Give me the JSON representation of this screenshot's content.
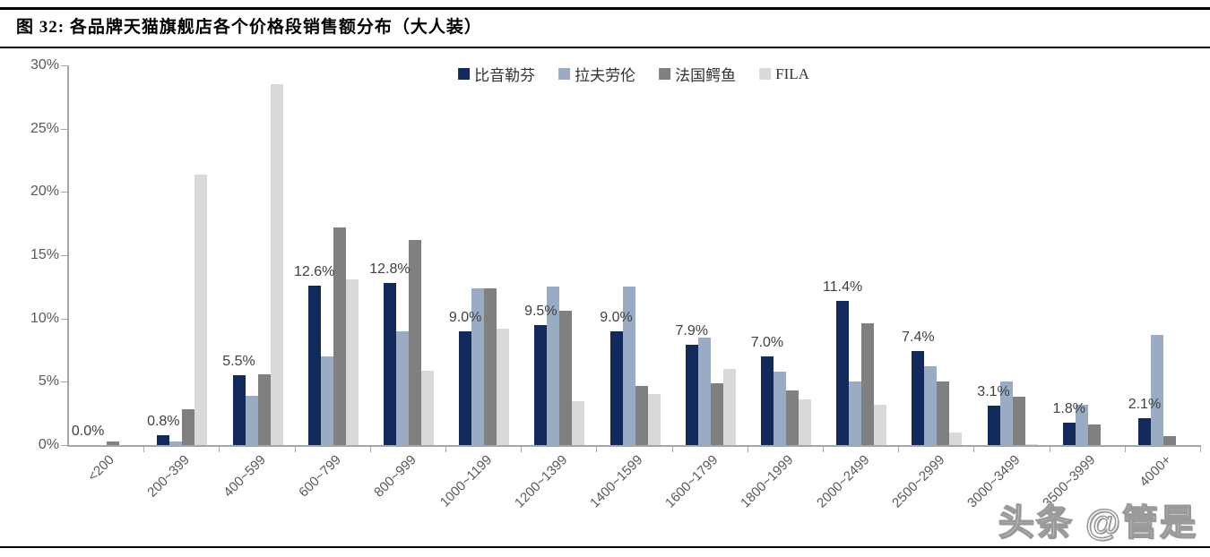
{
  "figure": {
    "title": "图 32:  各品牌天猫旗舰店各个价格段销售额分布（大人装）"
  },
  "watermark": "头条 @管是",
  "colors": {
    "axis_line": "#a6a6a6",
    "axis_text": "#595959",
    "data_label_text": "#404040"
  },
  "chart_data": {
    "type": "bar",
    "title": "各品牌天猫旗舰店各个价格段销售额分布（大人装）",
    "xlabel": "",
    "ylabel": "",
    "ylim": [
      0,
      30
    ],
    "ytick_step": 5,
    "yticks": [
      "0%",
      "5%",
      "10%",
      "15%",
      "20%",
      "25%",
      "30%"
    ],
    "grid": false,
    "legend_position": "top-center",
    "categories": [
      "<200",
      "200~399",
      "400~599",
      "600~799",
      "800~999",
      "1000~1199",
      "1200~1399",
      "1400~1599",
      "1600~1799",
      "1800~1999",
      "2000~2499",
      "2500~2999",
      "3000~3499",
      "3500~3999",
      "4000+"
    ],
    "series": [
      {
        "name": "比音勒芬",
        "color": "#12295B",
        "values": [
          0.0,
          0.8,
          5.5,
          12.6,
          12.8,
          9.0,
          9.5,
          9.0,
          7.9,
          7.0,
          11.4,
          7.4,
          3.1,
          1.8,
          2.1
        ],
        "labels": [
          "0.0%",
          "0.8%",
          "5.5%",
          "12.6%",
          "12.8%",
          "9.0%",
          "9.5%",
          "9.0%",
          "7.9%",
          "7.0%",
          "11.4%",
          "7.4%",
          "3.1%",
          "1.8%",
          "2.1%"
        ]
      },
      {
        "name": "拉夫劳伦",
        "color": "#9AACC3",
        "values": [
          0.0,
          0.3,
          3.9,
          7.0,
          9.0,
          12.4,
          12.5,
          12.5,
          8.5,
          5.8,
          5.0,
          6.2,
          5.0,
          3.2,
          8.7
        ]
      },
      {
        "name": "法国鳄鱼",
        "color": "#808080",
        "values": [
          0.3,
          2.8,
          5.6,
          17.2,
          16.2,
          12.4,
          10.6,
          4.7,
          4.9,
          4.3,
          9.6,
          5.0,
          3.8,
          1.6,
          0.7
        ]
      },
      {
        "name": "FILA",
        "color": "#D9D9D9",
        "values": [
          0.0,
          21.4,
          28.5,
          13.1,
          5.9,
          9.2,
          3.5,
          4.0,
          6.0,
          3.6,
          3.2,
          1.0,
          0.1,
          0.0,
          0.0
        ]
      }
    ]
  }
}
